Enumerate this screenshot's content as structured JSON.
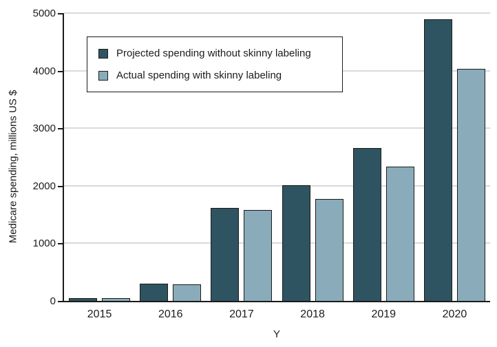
{
  "chart_data": {
    "type": "bar",
    "title": "",
    "xlabel": "Y",
    "ylabel": "Medicare spending, millions US $",
    "categories": [
      "2015",
      "2016",
      "2017",
      "2018",
      "2019",
      "2020"
    ],
    "series": [
      {
        "name": "Projected spending without skinny labeling",
        "color": "#2f5461",
        "values": [
          50,
          300,
          1620,
          2010,
          2650,
          4890
        ]
      },
      {
        "name": "Actual spending with skinny labeling",
        "color": "#8aabba",
        "values": [
          45,
          290,
          1580,
          1770,
          2330,
          4030
        ]
      }
    ],
    "ylim": [
      0,
      5000
    ],
    "yticks": [
      0,
      1000,
      2000,
      3000,
      4000,
      5000
    ],
    "grid": true,
    "legend_position": "top-left-inside",
    "gridline_color": "#dadada",
    "axis_color": "#1a1a1a"
  }
}
